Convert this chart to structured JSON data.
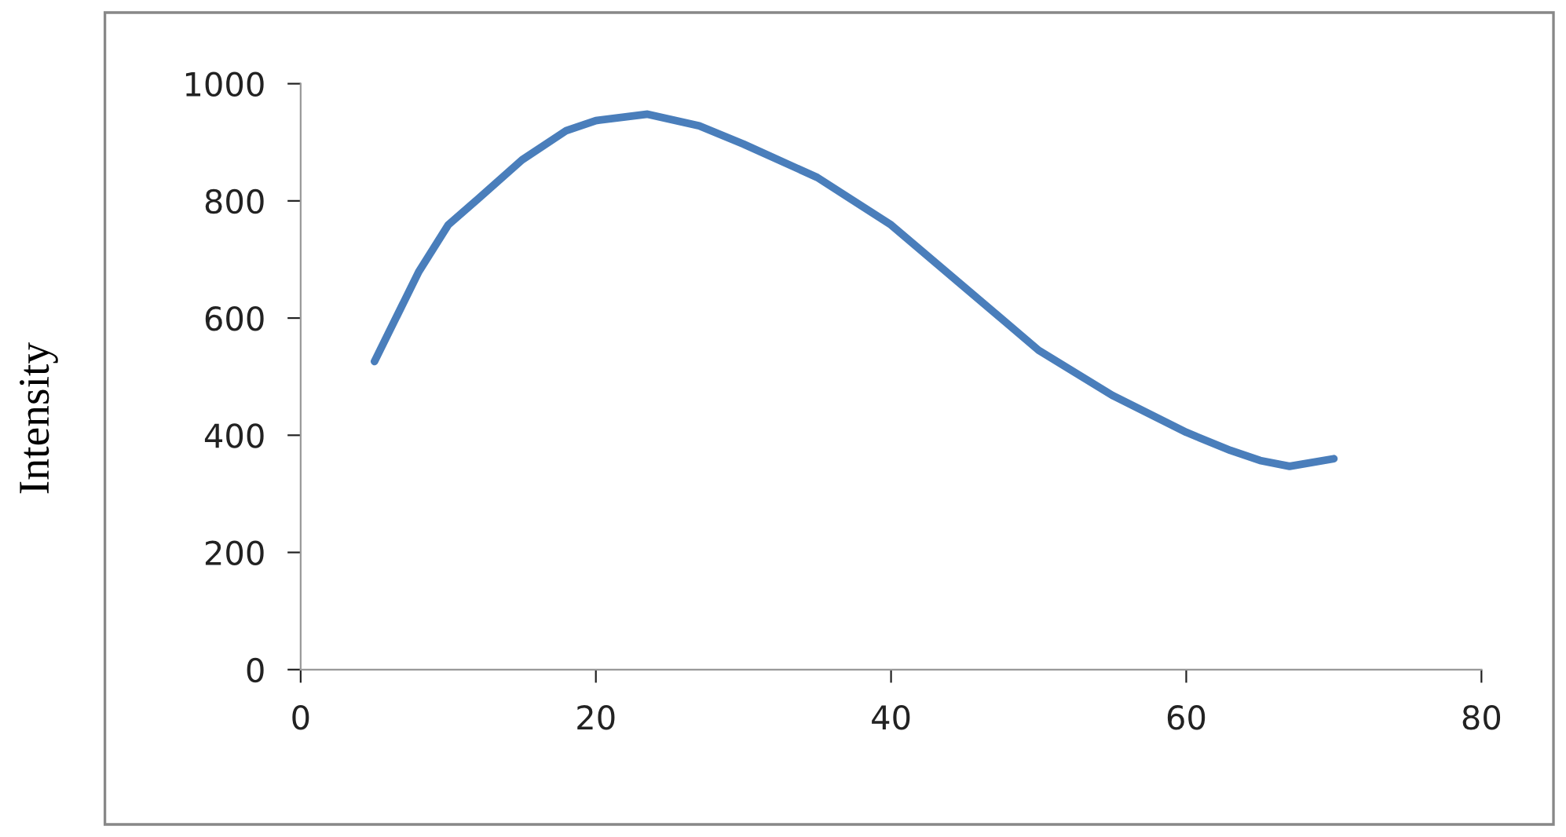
{
  "chart_data": {
    "type": "line",
    "ylabel": "Intensity",
    "x": [
      5,
      8,
      10,
      12,
      15,
      18,
      20,
      23.5,
      27,
      30,
      35,
      40,
      45,
      50,
      55,
      60,
      63,
      65,
      67,
      70
    ],
    "series": [
      {
        "color": "#4a7ebb",
        "values": [
          526,
          679,
          759,
          803,
          870,
          920,
          937,
          948,
          928,
          897,
          840,
          759,
          652,
          545,
          468,
          405,
          374,
          357,
          347,
          360
        ]
      }
    ],
    "xlim": [
      0,
      80
    ],
    "xticks": [
      0,
      20,
      40,
      60,
      80
    ],
    "ylim": [
      0,
      1000
    ],
    "yticks": [
      0,
      200,
      400,
      600,
      800,
      1000
    ],
    "grid": false,
    "legend": false,
    "marker": "none",
    "line_style": "solid"
  }
}
